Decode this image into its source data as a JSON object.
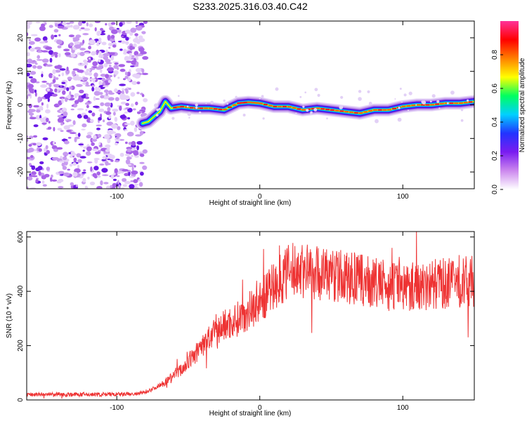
{
  "chart_data": [
    {
      "type": "heatmap",
      "title": "S233.2025.316.03.40.C42",
      "xlabel": "Height of straight line (km)",
      "ylabel": "Frequency (Hz)",
      "xlim": [
        -163,
        150
      ],
      "ylim": [
        -25,
        25
      ],
      "xticks": [
        -100,
        0,
        100
      ],
      "yticks": [
        -20,
        -10,
        0,
        10,
        20
      ],
      "colorbar": {
        "label": "Normalized spectral amplitude",
        "ticks": [
          0.0,
          0.2,
          0.4,
          0.6,
          0.8
        ],
        "range": [
          0,
          1
        ],
        "colors": [
          "#ffffff",
          "#cc88ee",
          "#7a1cf0",
          "#2233ff",
          "#00d0ff",
          "#00ff60",
          "#ffff00",
          "#ff8000",
          "#ff0000",
          "#ff3399"
        ]
      },
      "noise_region_x": [
        -163,
        -80
      ],
      "ridge": {
        "x": [
          -82,
          -78,
          -74,
          -70,
          -66,
          -62,
          -55,
          -45,
          -35,
          -25,
          -15,
          -8,
          0,
          10,
          20,
          30,
          40,
          50,
          60,
          70,
          80,
          90,
          100,
          110,
          120,
          130,
          140,
          150
        ],
        "freq": [
          -5.5,
          -5.0,
          -3.5,
          -2.0,
          1.0,
          -1.0,
          -0.5,
          -1.0,
          -1.0,
          -1.5,
          0.5,
          0.8,
          0.5,
          -0.5,
          -0.5,
          -1.5,
          -1.0,
          -1.5,
          -2.0,
          -2.5,
          -1.5,
          -1.5,
          -0.5,
          0.0,
          0.0,
          0.5,
          0.5,
          1.0
        ]
      }
    },
    {
      "type": "line",
      "xlabel": "Height of straight line (km)",
      "ylabel": "SNR (10 * v/v)",
      "xlim": [
        -163,
        150
      ],
      "ylim": [
        0,
        620
      ],
      "xticks": [
        -100,
        0,
        100
      ],
      "yticks": [
        0,
        200,
        400,
        600
      ],
      "series": [
        {
          "name": "SNR",
          "color": "#ee3333",
          "x": [
            -163,
            -140,
            -120,
            -100,
            -85,
            -80,
            -75,
            -70,
            -65,
            -60,
            -55,
            -50,
            -45,
            -40,
            -35,
            -30,
            -25,
            -20,
            -15,
            -10,
            -5,
            0,
            5,
            10,
            15,
            20,
            25,
            30,
            40,
            50,
            60,
            70,
            80,
            90,
            100,
            110,
            120,
            130,
            140,
            150
          ],
          "y": [
            20,
            20,
            20,
            20,
            22,
            30,
            40,
            55,
            70,
            95,
            110,
            140,
            170,
            200,
            230,
            250,
            275,
            285,
            300,
            320,
            340,
            360,
            390,
            420,
            450,
            470,
            480,
            480,
            470,
            460,
            450,
            440,
            430,
            420,
            420,
            420,
            425,
            430,
            430,
            440
          ]
        }
      ]
    }
  ]
}
